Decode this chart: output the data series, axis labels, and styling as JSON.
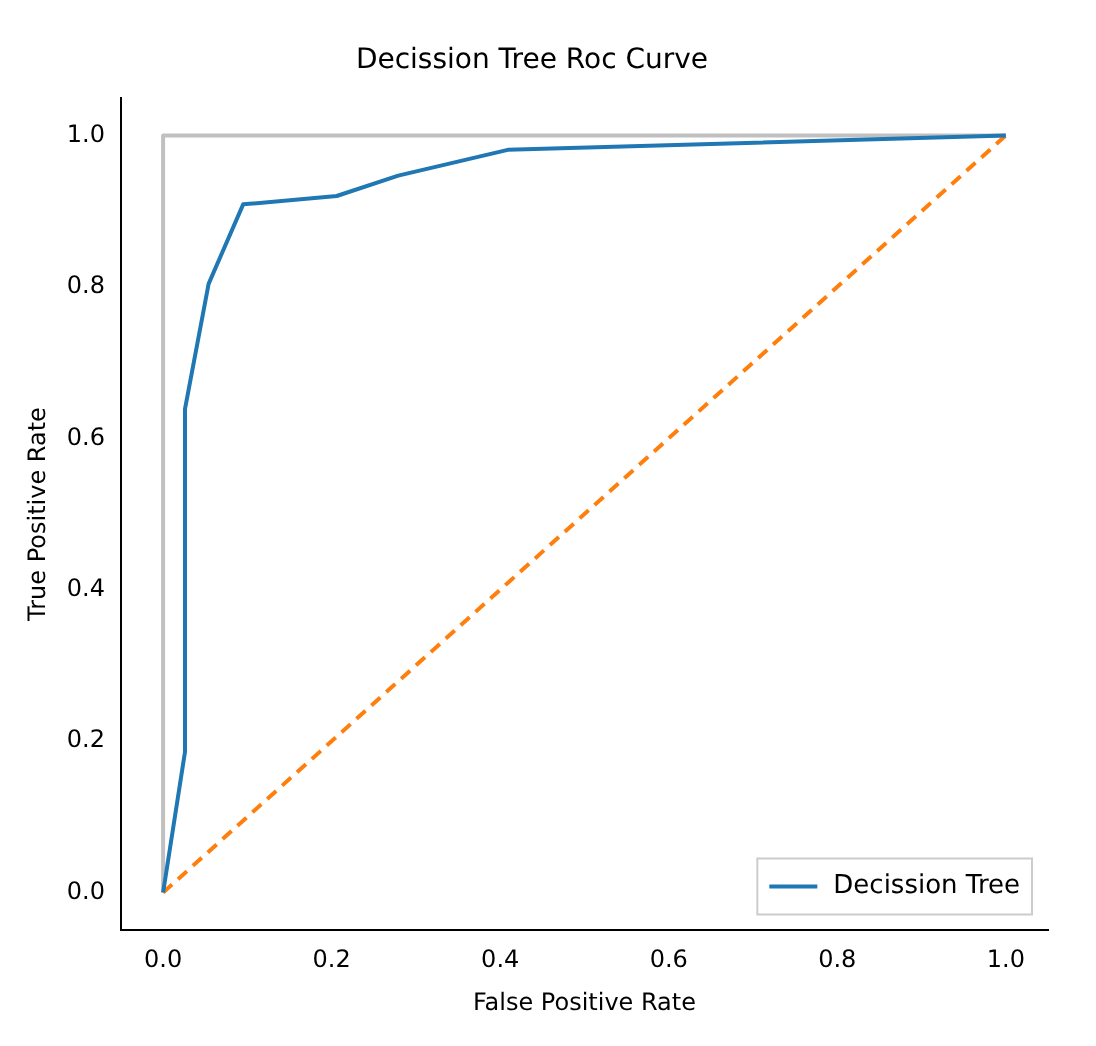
{
  "chart_data": {
    "type": "line",
    "title": "Decission Tree Roc Curve",
    "xlabel": "False Positive Rate",
    "ylabel": "True Positive Rate",
    "series": [
      {
        "name": "Decission Tree",
        "color": "#1f77b4",
        "x": [
          0,
          0.026,
          0.026,
          0.054,
          0.095,
          0.206,
          0.279,
          0.409,
          1.0
        ],
        "values": [
          0,
          0.186,
          0.639,
          0.804,
          0.909,
          0.92,
          0.947,
          0.981,
          1.0
        ]
      },
      {
        "color": "#ff7f0e",
        "line_style": "dashed",
        "x": [
          0,
          1
        ],
        "values": [
          0,
          1
        ]
      },
      {
        "color": "#c0c0c0",
        "x": [
          0,
          0,
          1
        ],
        "values": [
          0,
          1,
          1
        ]
      }
    ],
    "xlim": [
      -0.05,
      1.05
    ],
    "ylim": [
      -0.05,
      1.05
    ],
    "xticks": [
      {
        "value": 0,
        "label": "0.0"
      },
      {
        "value": 0.2,
        "label": "0.2"
      },
      {
        "value": 0.4,
        "label": "0.4"
      },
      {
        "value": 0.6,
        "label": "0.6"
      },
      {
        "value": 0.8,
        "label": "0.8"
      },
      {
        "value": 1,
        "label": "1.0"
      }
    ],
    "yticks": [
      {
        "value": 0,
        "label": "0.0"
      },
      {
        "value": 0.2,
        "label": "0.2"
      },
      {
        "value": 0.4,
        "label": "0.4"
      },
      {
        "value": 0.6,
        "label": "0.6"
      },
      {
        "value": 0.8,
        "label": "0.8"
      },
      {
        "value": 1,
        "label": "1.0"
      }
    ],
    "legend": "bottom right",
    "grid": false,
    "marker": "none"
  }
}
